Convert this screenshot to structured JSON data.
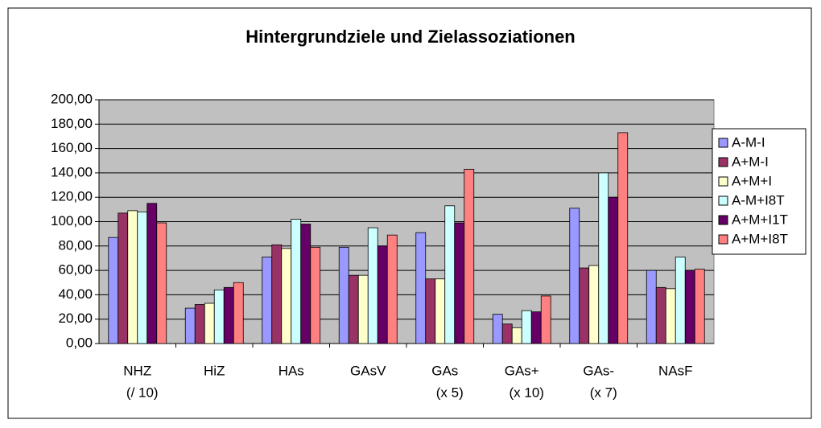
{
  "chart_data": {
    "type": "bar",
    "title": "Hintergrundziele und Zielassoziationen",
    "categories": [
      [
        "NHZ",
        "(/ 10)"
      ],
      [
        "HiZ"
      ],
      [
        "HAs"
      ],
      [
        "GAsV"
      ],
      [
        "GAs",
        "(x 5)"
      ],
      [
        "GAs+",
        "(x 10)"
      ],
      [
        "GAs-",
        "(x 7)"
      ],
      [
        "NAsF"
      ]
    ],
    "series": [
      {
        "name": "A-M-I",
        "color": "#9999ff",
        "values": [
          87,
          29,
          71,
          79,
          91,
          24,
          111,
          60
        ]
      },
      {
        "name": "A+M-I",
        "color": "#993366",
        "values": [
          107,
          32,
          81,
          56,
          53,
          16,
          62,
          46
        ]
      },
      {
        "name": "A+M+I",
        "color": "#ffffcc",
        "values": [
          109,
          33,
          78,
          56,
          53,
          13,
          64,
          45
        ]
      },
      {
        "name": "A-M+I8T",
        "color": "#ccffff",
        "values": [
          108,
          44,
          102,
          95,
          113,
          27,
          140,
          71
        ]
      },
      {
        "name": "A+M+I1T",
        "color": "#660066",
        "values": [
          115,
          46,
          98,
          80,
          99,
          26,
          120,
          60
        ]
      },
      {
        "name": "A+M+I8T",
        "color": "#ff8080",
        "values": [
          99,
          50,
          79,
          89,
          143,
          39,
          173,
          61
        ]
      }
    ],
    "ylim": [
      0,
      200
    ],
    "yticks": [
      {
        "value": 0,
        "label": "0,00"
      },
      {
        "value": 20,
        "label": "20,00"
      },
      {
        "value": 40,
        "label": "40,00"
      },
      {
        "value": 60,
        "label": "60,00"
      },
      {
        "value": 80,
        "label": "80,00"
      },
      {
        "value": 100,
        "label": "100,00"
      },
      {
        "value": 120,
        "label": "120,00"
      },
      {
        "value": 140,
        "label": "140,00"
      },
      {
        "value": 160,
        "label": "160,00"
      },
      {
        "value": 180,
        "label": "180,00"
      },
      {
        "value": 200,
        "label": "200,00"
      }
    ],
    "grid": true,
    "legend": "right"
  }
}
